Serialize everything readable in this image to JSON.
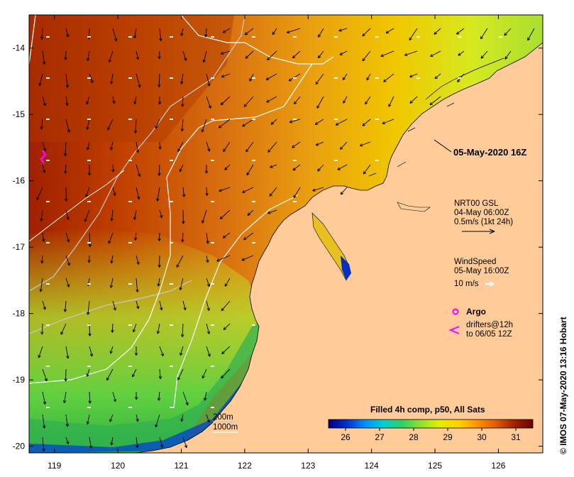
{
  "map": {
    "timestamp": "05-May-2020 16Z",
    "credit": "© IMOS 07-May-2020 13:16 Hobart",
    "lon_ticks": [
      "119",
      "120",
      "121",
      "122",
      "123",
      "124",
      "125",
      "126"
    ],
    "lat_ticks": [
      "-14",
      "-15",
      "-16",
      "-17",
      "-18",
      "-19",
      "-20"
    ],
    "lon_range": [
      118.6,
      126.7
    ],
    "lat_range": [
      -20.1,
      -13.5
    ]
  },
  "currents_legend": {
    "line1": "NRT00 GSL",
    "line2": "04-May 06:00Z",
    "line3": "0.5m/s (1kt 24h)"
  },
  "wind_legend": {
    "line1": "WindSpeed",
    "line2": "05-May 16:00Z",
    "line3": "10 m/s"
  },
  "argo_legend": {
    "label": "Argo"
  },
  "drifter_legend": {
    "line1": "drifters@12h",
    "line2": "to 06/05 12Z"
  },
  "bathymetry_legend": {
    "line1": "200m",
    "line2": "1000m"
  },
  "colorbar": {
    "title": "Filled 4h comp, p50, All Sats",
    "ticks": [
      "26",
      "27",
      "28",
      "29",
      "30",
      "31"
    ],
    "range": [
      25.5,
      31.5
    ],
    "colors": [
      "#00007f",
      "#0030d0",
      "#0090ff",
      "#00d0d0",
      "#30d060",
      "#90e030",
      "#e0f000",
      "#ffd000",
      "#ff9000",
      "#e05a00",
      "#a02000",
      "#6a0000"
    ]
  },
  "colors": {
    "land": "#ffcc99",
    "coast": "#000000",
    "arrow": "#000000",
    "wind": "#ffffff",
    "argo": "#ff00ff",
    "bathy_200": "#c8c8c8",
    "bathy_1000": "#ffffff"
  }
}
